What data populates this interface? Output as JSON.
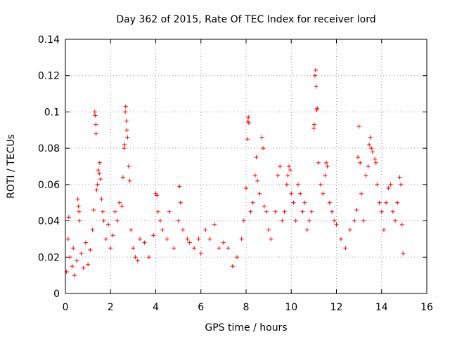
{
  "chart_data": {
    "type": "scatter",
    "title": "Day 362 of 2015, Rate Of TEC Index for receiver lord",
    "xlabel": "GPS time / hours",
    "ylabel": "ROTI / TECUs",
    "xlim": [
      0,
      16
    ],
    "ylim": [
      0,
      0.14
    ],
    "xticks": [
      0,
      2,
      4,
      6,
      8,
      10,
      12,
      14,
      16
    ],
    "xtick_labels": [
      "0",
      "2",
      "4",
      "6",
      "8",
      "10",
      "12",
      "14",
      "16"
    ],
    "yticks": [
      0,
      0.02,
      0.04,
      0.06,
      0.08,
      0.1,
      0.12,
      0.14
    ],
    "ytick_labels": [
      "0",
      "0.02",
      "0.04",
      "0.06",
      "0.08",
      "0.1",
      "0.12",
      "0.14"
    ],
    "grid": true,
    "marker": "+",
    "marker_color": "#ff0000",
    "series": [
      {
        "points": [
          [
            0.05,
            0.012
          ],
          [
            0.12,
            0.03
          ],
          [
            0.15,
            0.042
          ],
          [
            0.2,
            0.02
          ],
          [
            0.3,
            0.015
          ],
          [
            0.35,
            0.025
          ],
          [
            0.4,
            0.01
          ],
          [
            0.5,
            0.018
          ],
          [
            0.55,
            0.052
          ],
          [
            0.58,
            0.048
          ],
          [
            0.6,
            0.045
          ],
          [
            0.62,
            0.04
          ],
          [
            0.7,
            0.022
          ],
          [
            0.8,
            0.014
          ],
          [
            0.9,
            0.028
          ],
          [
            1.0,
            0.016
          ],
          [
            1.1,
            0.024
          ],
          [
            1.2,
            0.035
          ],
          [
            1.25,
            0.046
          ],
          [
            1.3,
            0.1
          ],
          [
            1.32,
            0.098
          ],
          [
            1.35,
            0.093
          ],
          [
            1.36,
            0.088
          ],
          [
            1.38,
            0.057
          ],
          [
            1.42,
            0.06
          ],
          [
            1.45,
            0.068
          ],
          [
            1.5,
            0.066
          ],
          [
            1.52,
            0.072
          ],
          [
            1.55,
            0.063
          ],
          [
            1.6,
            0.052
          ],
          [
            1.65,
            0.045
          ],
          [
            1.7,
            0.04
          ],
          [
            1.8,
            0.03
          ],
          [
            1.9,
            0.038
          ],
          [
            2.0,
            0.025
          ],
          [
            2.1,
            0.032
          ],
          [
            2.2,
            0.045
          ],
          [
            2.3,
            0.04
          ],
          [
            2.4,
            0.05
          ],
          [
            2.5,
            0.048
          ],
          [
            2.55,
            0.064
          ],
          [
            2.6,
            0.08
          ],
          [
            2.62,
            0.082
          ],
          [
            2.65,
            0.1
          ],
          [
            2.67,
            0.103
          ],
          [
            2.7,
            0.095
          ],
          [
            2.72,
            0.09
          ],
          [
            2.75,
            0.086
          ],
          [
            2.8,
            0.07
          ],
          [
            2.85,
            0.062
          ],
          [
            2.9,
            0.035
          ],
          [
            3.0,
            0.025
          ],
          [
            3.1,
            0.02
          ],
          [
            3.2,
            0.018
          ],
          [
            3.3,
            0.03
          ],
          [
            3.5,
            0.028
          ],
          [
            3.7,
            0.02
          ],
          [
            3.9,
            0.032
          ],
          [
            4.0,
            0.055
          ],
          [
            4.05,
            0.054
          ],
          [
            4.1,
            0.045
          ],
          [
            4.2,
            0.04
          ],
          [
            4.3,
            0.035
          ],
          [
            4.5,
            0.03
          ],
          [
            4.6,
            0.045
          ],
          [
            4.8,
            0.025
          ],
          [
            5.0,
            0.04
          ],
          [
            5.05,
            0.059
          ],
          [
            5.1,
            0.05
          ],
          [
            5.2,
            0.035
          ],
          [
            5.4,
            0.03
          ],
          [
            5.5,
            0.028
          ],
          [
            5.7,
            0.025
          ],
          [
            5.9,
            0.03
          ],
          [
            6.0,
            0.022
          ],
          [
            6.2,
            0.035
          ],
          [
            6.4,
            0.03
          ],
          [
            6.6,
            0.038
          ],
          [
            6.8,
            0.025
          ],
          [
            7.0,
            0.028
          ],
          [
            7.2,
            0.025
          ],
          [
            7.4,
            0.015
          ],
          [
            7.6,
            0.02
          ],
          [
            7.8,
            0.03
          ],
          [
            7.9,
            0.04
          ],
          [
            8.0,
            0.058
          ],
          [
            8.05,
            0.085
          ],
          [
            8.08,
            0.095
          ],
          [
            8.1,
            0.097
          ],
          [
            8.12,
            0.094
          ],
          [
            8.2,
            0.045
          ],
          [
            8.3,
            0.05
          ],
          [
            8.4,
            0.065
          ],
          [
            8.45,
            0.075
          ],
          [
            8.5,
            0.062
          ],
          [
            8.6,
            0.055
          ],
          [
            8.7,
            0.086
          ],
          [
            8.75,
            0.08
          ],
          [
            8.8,
            0.048
          ],
          [
            8.9,
            0.045
          ],
          [
            9.0,
            0.035
          ],
          [
            9.1,
            0.03
          ],
          [
            9.3,
            0.045
          ],
          [
            9.4,
            0.065
          ],
          [
            9.5,
            0.07
          ],
          [
            9.6,
            0.04
          ],
          [
            9.7,
            0.045
          ],
          [
            9.8,
            0.06
          ],
          [
            9.85,
            0.065
          ],
          [
            9.9,
            0.07
          ],
          [
            9.95,
            0.068
          ],
          [
            10.0,
            0.055
          ],
          [
            10.1,
            0.05
          ],
          [
            10.2,
            0.04
          ],
          [
            10.3,
            0.06
          ],
          [
            10.4,
            0.055
          ],
          [
            10.5,
            0.045
          ],
          [
            10.6,
            0.05
          ],
          [
            10.7,
            0.035
          ],
          [
            10.8,
            0.04
          ],
          [
            10.9,
            0.045
          ],
          [
            11.0,
            0.091
          ],
          [
            11.02,
            0.093
          ],
          [
            11.05,
            0.12
          ],
          [
            11.08,
            0.123
          ],
          [
            11.1,
            0.114
          ],
          [
            11.12,
            0.101
          ],
          [
            11.15,
            0.102
          ],
          [
            11.2,
            0.072
          ],
          [
            11.3,
            0.06
          ],
          [
            11.4,
            0.055
          ],
          [
            11.5,
            0.065
          ],
          [
            11.55,
            0.072
          ],
          [
            11.6,
            0.07
          ],
          [
            11.7,
            0.05
          ],
          [
            11.8,
            0.045
          ],
          [
            11.9,
            0.04
          ],
          [
            12.0,
            0.038
          ],
          [
            12.2,
            0.03
          ],
          [
            12.4,
            0.025
          ],
          [
            12.6,
            0.035
          ],
          [
            12.8,
            0.04
          ],
          [
            12.9,
            0.046
          ],
          [
            12.95,
            0.075
          ],
          [
            13.0,
            0.092
          ],
          [
            13.05,
            0.072
          ],
          [
            13.1,
            0.055
          ],
          [
            13.2,
            0.04
          ],
          [
            13.3,
            0.065
          ],
          [
            13.4,
            0.07
          ],
          [
            13.45,
            0.082
          ],
          [
            13.5,
            0.086
          ],
          [
            13.55,
            0.08
          ],
          [
            13.6,
            0.078
          ],
          [
            13.7,
            0.074
          ],
          [
            13.75,
            0.072
          ],
          [
            13.8,
            0.06
          ],
          [
            13.9,
            0.05
          ],
          [
            14.0,
            0.045
          ],
          [
            14.1,
            0.035
          ],
          [
            14.2,
            0.05
          ],
          [
            14.3,
            0.058
          ],
          [
            14.4,
            0.06
          ],
          [
            14.5,
            0.045
          ],
          [
            14.6,
            0.04
          ],
          [
            14.7,
            0.05
          ],
          [
            14.8,
            0.064
          ],
          [
            14.85,
            0.06
          ],
          [
            14.9,
            0.038
          ],
          [
            14.95,
            0.022
          ]
        ]
      }
    ]
  }
}
